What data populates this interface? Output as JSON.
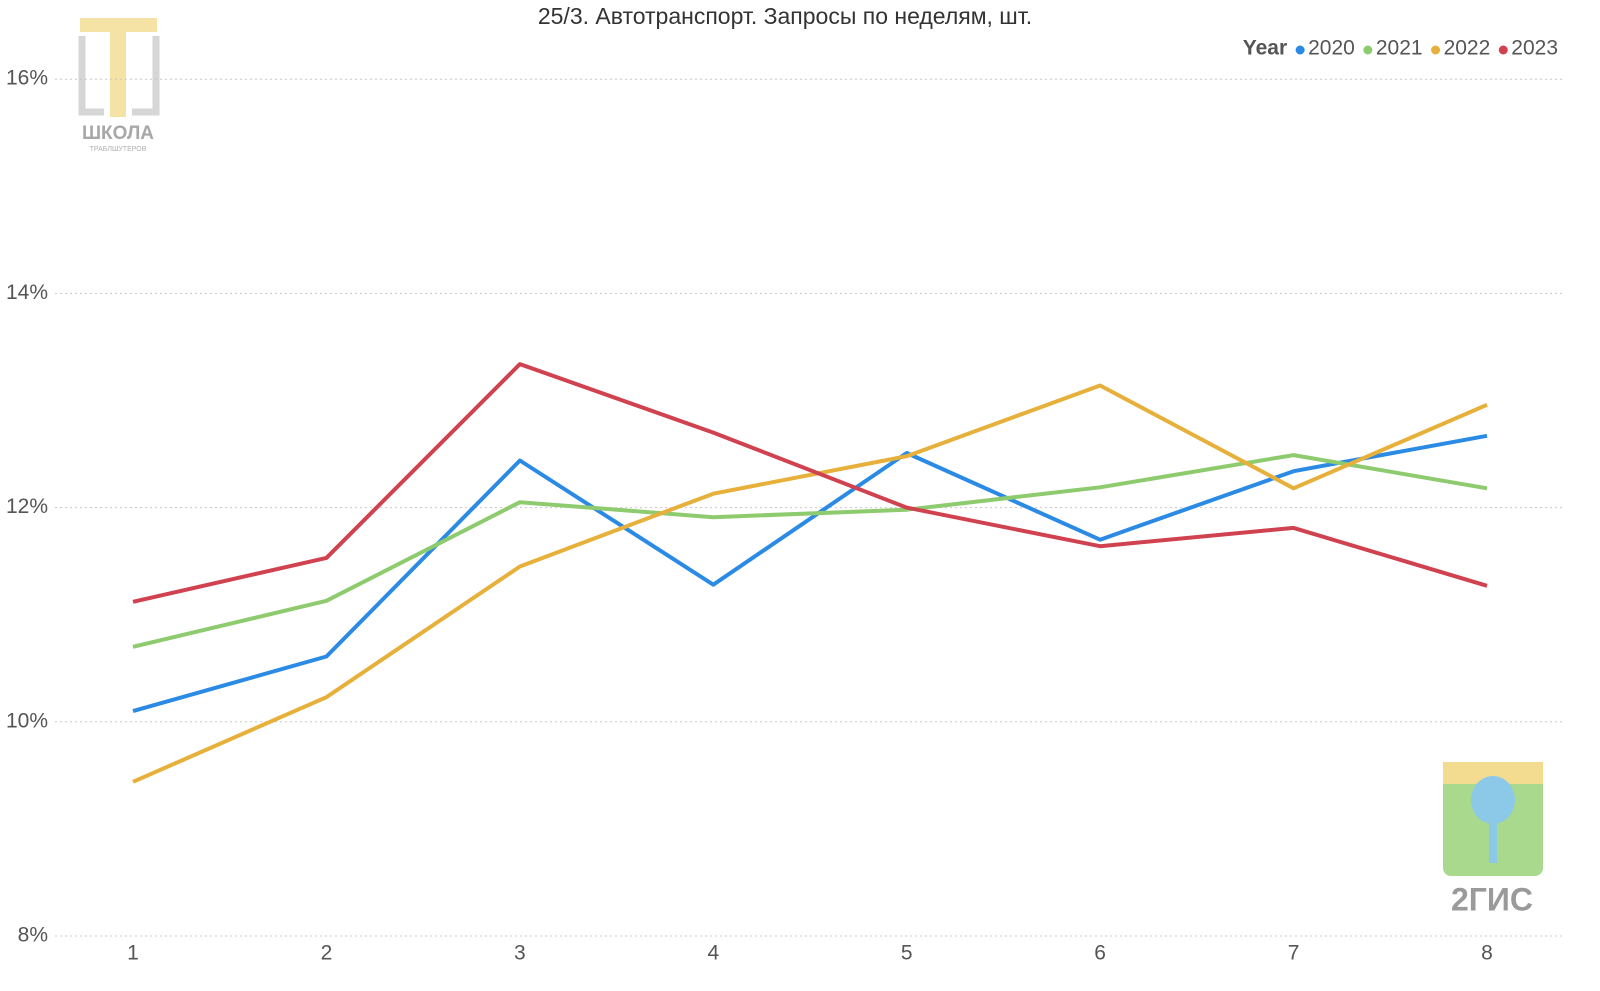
{
  "chart_data": {
    "type": "line",
    "title": "25/3. Автотранспорт. Запросы по неделям, шт.",
    "legend_title": "Year",
    "legend_position": "top-right",
    "categories": [
      "1",
      "2",
      "3",
      "4",
      "5",
      "6",
      "7",
      "8"
    ],
    "series": [
      {
        "name": "2020",
        "color": "#2b8be4",
        "values": [
          10.1,
          10.61,
          12.44,
          11.28,
          12.51,
          11.7,
          12.34,
          12.67
        ]
      },
      {
        "name": "2021",
        "color": "#8dcb6e",
        "values": [
          10.7,
          11.13,
          12.05,
          11.91,
          11.98,
          12.19,
          12.49,
          12.18
        ]
      },
      {
        "name": "2022",
        "color": "#e6b03a",
        "values": [
          9.44,
          10.23,
          11.45,
          12.13,
          12.48,
          13.14,
          12.18,
          12.96
        ]
      },
      {
        "name": "2023",
        "color": "#d0424f",
        "values": [
          11.12,
          11.53,
          13.34,
          12.7,
          12.0,
          11.64,
          11.81,
          11.27
        ]
      }
    ],
    "ylim": [
      8,
      16.6
    ],
    "yticks": [
      {
        "value": 8,
        "label": "8%"
      },
      {
        "value": 10,
        "label": "10%"
      },
      {
        "value": 12,
        "label": "12%"
      },
      {
        "value": 14,
        "label": "14%"
      },
      {
        "value": 16,
        "label": "16%"
      }
    ],
    "grid": true
  },
  "watermarks": {
    "school": "ШКОЛА",
    "school_sub": "ТРАБЛШУТЕРОВ",
    "gis": "2ГИС"
  }
}
